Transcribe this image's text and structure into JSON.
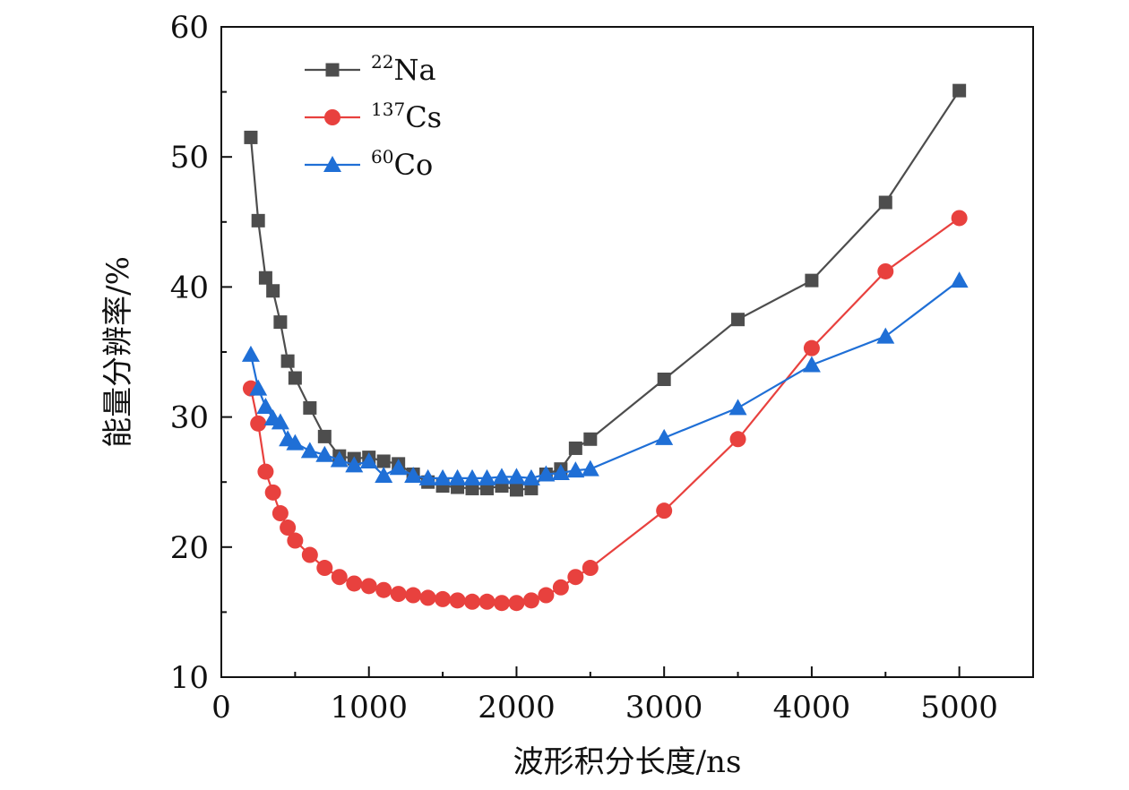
{
  "chart_data": {
    "type": "line",
    "xlabel": "波形积分长度/ns",
    "ylabel": "能量分辨率/%",
    "xlim": [
      0,
      5500
    ],
    "ylim": [
      10,
      60
    ],
    "xticks": [
      0,
      1000,
      2000,
      3000,
      4000,
      5000
    ],
    "yticks": [
      10,
      20,
      30,
      40,
      50,
      60
    ],
    "grid": false,
    "legend_position": "top-left",
    "series": [
      {
        "name": "22Na",
        "label_sup": "22",
        "label_base": "Na",
        "color": "#4d4d4d",
        "marker": "square",
        "x": [
          200,
          250,
          300,
          350,
          400,
          450,
          500,
          600,
          700,
          800,
          900,
          1000,
          1100,
          1200,
          1300,
          1400,
          1500,
          1600,
          1700,
          1800,
          1900,
          2000,
          2100,
          2200,
          2300,
          2400,
          2500,
          3000,
          3500,
          4000,
          4500,
          5000
        ],
        "values": [
          51.5,
          45.1,
          40.7,
          39.7,
          37.3,
          34.3,
          33.0,
          30.7,
          28.5,
          27.0,
          26.8,
          26.9,
          26.6,
          26.4,
          25.6,
          25.0,
          24.7,
          24.6,
          24.5,
          24.5,
          24.7,
          24.4,
          24.5,
          25.6,
          26.0,
          27.6,
          28.3,
          32.9,
          37.5,
          40.5,
          46.5,
          55.1
        ]
      },
      {
        "name": "137Cs",
        "label_sup": "137",
        "label_base": "Cs",
        "color": "#e8413e",
        "marker": "circle",
        "x": [
          200,
          250,
          300,
          350,
          400,
          450,
          500,
          600,
          700,
          800,
          900,
          1000,
          1100,
          1200,
          1300,
          1400,
          1500,
          1600,
          1700,
          1800,
          1900,
          2000,
          2100,
          2200,
          2300,
          2400,
          2500,
          3000,
          3500,
          4000,
          4500,
          5000
        ],
        "values": [
          32.2,
          29.5,
          25.8,
          24.2,
          22.6,
          21.5,
          20.5,
          19.4,
          18.4,
          17.7,
          17.2,
          17.0,
          16.7,
          16.4,
          16.3,
          16.1,
          16.0,
          15.9,
          15.8,
          15.8,
          15.7,
          15.7,
          15.9,
          16.3,
          16.9,
          17.7,
          18.4,
          22.8,
          28.3,
          35.3,
          41.2,
          45.3
        ]
      },
      {
        "name": "60Co",
        "label_sup": "60",
        "label_base": "Co",
        "color": "#1f6fd6",
        "marker": "triangle",
        "x": [
          200,
          250,
          300,
          350,
          400,
          450,
          500,
          600,
          700,
          800,
          900,
          1000,
          1100,
          1200,
          1300,
          1400,
          1500,
          1600,
          1700,
          1800,
          1900,
          2000,
          2100,
          2200,
          2300,
          2400,
          2500,
          3000,
          3500,
          4000,
          4500,
          5000
        ],
        "values": [
          34.8,
          32.2,
          30.8,
          29.9,
          29.6,
          28.3,
          28.0,
          27.4,
          27.1,
          26.7,
          26.3,
          26.6,
          25.5,
          26.1,
          25.5,
          25.3,
          25.3,
          25.3,
          25.3,
          25.3,
          25.4,
          25.4,
          25.3,
          25.6,
          25.7,
          25.9,
          26.0,
          28.4,
          30.7,
          34.0,
          36.2,
          40.5
        ]
      }
    ]
  }
}
